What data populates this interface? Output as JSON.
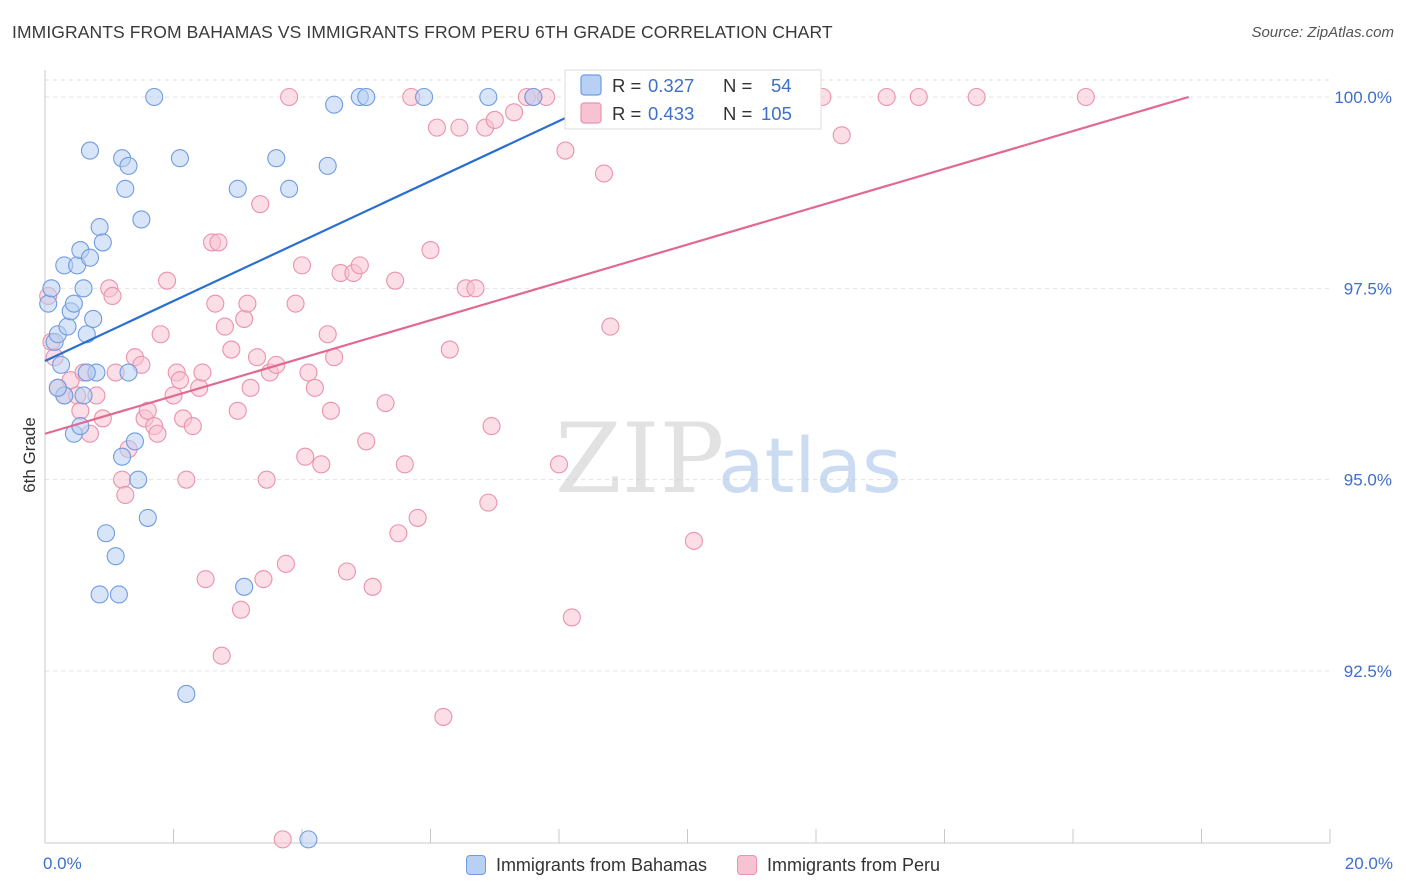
{
  "header": {
    "title": "IMMIGRANTS FROM BAHAMAS VS IMMIGRANTS FROM PERU 6TH GRADE CORRELATION CHART",
    "source": "Source: ZipAtlas.com"
  },
  "watermark": {
    "zip": "ZIP",
    "atlas": "atlas"
  },
  "legend_box": {
    "r_label": "R =",
    "n_label": "N =",
    "rows": [
      {
        "r": "0.327",
        "n": "54"
      },
      {
        "r": "0.433",
        "n": "105"
      }
    ]
  },
  "bottom_legend": [
    {
      "label": "Immigrants from Bahamas"
    },
    {
      "label": "Immigrants from Peru"
    }
  ],
  "colors": {
    "bahamas_fill": "#b8d0f3",
    "bahamas_stroke": "#6f9ce0",
    "bahamas_line": "#2a6fd0",
    "peru_fill": "#f7c2d1",
    "peru_stroke": "#eb92ad",
    "peru_line": "#e06a92",
    "tick_label": "#3e6fc9",
    "grid": "#e3e3e3"
  },
  "chart_data": {
    "type": "scatter",
    "title": "IMMIGRANTS FROM BAHAMAS VS IMMIGRANTS FROM PERU 6TH GRADE CORRELATION CHART",
    "xlabel": "",
    "ylabel": "6th Grade",
    "xlim": [
      0,
      20
    ],
    "ylim": [
      90.5,
      100.25
    ],
    "x_ticks_labels": [
      "0.0%",
      "20.0%"
    ],
    "y_ticks": [
      92.5,
      95.0,
      97.5,
      100.0
    ],
    "y_tick_labels": [
      "92.5%",
      "95.0%",
      "97.5%",
      "100.0%"
    ],
    "grid": "horizontal dashed",
    "series": [
      {
        "name": "Immigrants from Bahamas",
        "color": "#6f9ce0",
        "r": 0.327,
        "n": 54,
        "trend": {
          "x": [
            0.0,
            8.8
          ],
          "y": [
            96.55,
            100.0
          ]
        },
        "points": [
          [
            0.05,
            97.3
          ],
          [
            0.1,
            97.5
          ],
          [
            0.15,
            96.8
          ],
          [
            0.2,
            96.9
          ],
          [
            0.25,
            96.5
          ],
          [
            0.3,
            97.8
          ],
          [
            0.35,
            97.0
          ],
          [
            0.4,
            97.2
          ],
          [
            0.45,
            97.3
          ],
          [
            0.5,
            97.8
          ],
          [
            0.55,
            98.0
          ],
          [
            0.6,
            97.5
          ],
          [
            0.65,
            96.9
          ],
          [
            0.7,
            97.9
          ],
          [
            0.75,
            97.1
          ],
          [
            0.8,
            96.4
          ],
          [
            0.85,
            98.3
          ],
          [
            0.9,
            98.1
          ],
          [
            0.3,
            96.1
          ],
          [
            0.45,
            95.6
          ],
          [
            0.55,
            95.7
          ],
          [
            0.6,
            96.1
          ],
          [
            0.65,
            96.4
          ],
          [
            0.7,
            99.3
          ],
          [
            0.85,
            93.5
          ],
          [
            0.95,
            94.3
          ],
          [
            1.1,
            94.0
          ],
          [
            1.15,
            93.5
          ],
          [
            1.2,
            95.3
          ],
          [
            1.3,
            96.4
          ],
          [
            1.2,
            99.2
          ],
          [
            1.25,
            98.8
          ],
          [
            1.3,
            99.1
          ],
          [
            1.4,
            95.5
          ],
          [
            1.45,
            95.0
          ],
          [
            1.5,
            98.4
          ],
          [
            1.6,
            94.5
          ],
          [
            1.7,
            100.0
          ],
          [
            2.1,
            99.2
          ],
          [
            2.2,
            92.2
          ],
          [
            3.0,
            98.8
          ],
          [
            3.1,
            93.6
          ],
          [
            3.6,
            99.2
          ],
          [
            3.8,
            98.8
          ],
          [
            4.1,
            90.3
          ],
          [
            4.4,
            99.1
          ],
          [
            4.5,
            99.9
          ],
          [
            4.9,
            100.0
          ],
          [
            5.0,
            100.0
          ],
          [
            5.9,
            100.0
          ],
          [
            6.9,
            100.0
          ],
          [
            7.6,
            100.0
          ],
          [
            8.7,
            100.0
          ],
          [
            0.2,
            96.2
          ]
        ]
      },
      {
        "name": "Immigrants from Peru",
        "color": "#eb92ad",
        "r": 0.433,
        "n": 105,
        "trend": {
          "x": [
            0.0,
            17.8
          ],
          "y": [
            95.6,
            100.0
          ]
        },
        "points": [
          [
            0.05,
            97.4
          ],
          [
            0.1,
            96.8
          ],
          [
            0.15,
            96.6
          ],
          [
            0.2,
            96.2
          ],
          [
            0.3,
            96.1
          ],
          [
            0.4,
            96.3
          ],
          [
            0.5,
            96.1
          ],
          [
            0.55,
            95.9
          ],
          [
            0.6,
            96.4
          ],
          [
            0.7,
            95.6
          ],
          [
            0.8,
            96.1
          ],
          [
            0.9,
            95.8
          ],
          [
            1.0,
            97.5
          ],
          [
            1.05,
            97.4
          ],
          [
            1.1,
            96.4
          ],
          [
            1.2,
            95.0
          ],
          [
            1.25,
            94.8
          ],
          [
            1.3,
            95.4
          ],
          [
            1.4,
            96.6
          ],
          [
            1.5,
            96.5
          ],
          [
            1.55,
            95.8
          ],
          [
            1.6,
            95.9
          ],
          [
            1.7,
            95.7
          ],
          [
            1.75,
            95.6
          ],
          [
            1.8,
            96.9
          ],
          [
            1.9,
            97.6
          ],
          [
            2.0,
            96.1
          ],
          [
            2.05,
            96.4
          ],
          [
            2.1,
            96.3
          ],
          [
            2.15,
            95.8
          ],
          [
            2.2,
            95.0
          ],
          [
            2.3,
            95.7
          ],
          [
            2.4,
            96.2
          ],
          [
            2.45,
            96.4
          ],
          [
            2.5,
            93.7
          ],
          [
            2.6,
            98.1
          ],
          [
            2.65,
            97.3
          ],
          [
            2.7,
            98.1
          ],
          [
            2.75,
            92.7
          ],
          [
            2.8,
            97.0
          ],
          [
            2.9,
            96.7
          ],
          [
            3.0,
            95.9
          ],
          [
            3.05,
            93.3
          ],
          [
            3.1,
            97.1
          ],
          [
            3.15,
            97.3
          ],
          [
            3.2,
            96.2
          ],
          [
            3.3,
            96.6
          ],
          [
            3.35,
            98.6
          ],
          [
            3.4,
            93.7
          ],
          [
            3.45,
            95.0
          ],
          [
            3.5,
            96.4
          ],
          [
            3.6,
            96.5
          ],
          [
            3.7,
            90.3
          ],
          [
            3.75,
            93.9
          ],
          [
            3.9,
            97.3
          ],
          [
            4.0,
            97.8
          ],
          [
            4.05,
            95.3
          ],
          [
            4.1,
            96.4
          ],
          [
            4.2,
            96.2
          ],
          [
            4.3,
            95.2
          ],
          [
            4.4,
            96.9
          ],
          [
            4.45,
            95.9
          ],
          [
            4.5,
            96.6
          ],
          [
            4.6,
            97.7
          ],
          [
            4.7,
            93.8
          ],
          [
            4.8,
            97.7
          ],
          [
            4.9,
            97.8
          ],
          [
            5.0,
            95.5
          ],
          [
            5.1,
            93.6
          ],
          [
            5.3,
            96.0
          ],
          [
            5.45,
            97.6
          ],
          [
            5.5,
            94.3
          ],
          [
            5.6,
            95.2
          ],
          [
            5.7,
            100.0
          ],
          [
            5.8,
            94.5
          ],
          [
            6.0,
            98.0
          ],
          [
            6.1,
            99.6
          ],
          [
            6.2,
            91.9
          ],
          [
            6.3,
            96.7
          ],
          [
            6.45,
            99.6
          ],
          [
            6.55,
            97.5
          ],
          [
            6.7,
            97.5
          ],
          [
            6.85,
            99.6
          ],
          [
            6.9,
            94.7
          ],
          [
            6.95,
            95.7
          ],
          [
            7.0,
            99.7
          ],
          [
            7.3,
            99.8
          ],
          [
            7.5,
            100.0
          ],
          [
            7.6,
            100.0
          ],
          [
            8.1,
            99.3
          ],
          [
            8.0,
            95.2
          ],
          [
            8.2,
            93.2
          ],
          [
            8.7,
            99.0
          ],
          [
            8.8,
            97.0
          ],
          [
            9.6,
            100.0
          ],
          [
            10.1,
            94.2
          ],
          [
            12.1,
            100.0
          ],
          [
            12.4,
            99.5
          ],
          [
            13.1,
            100.0
          ],
          [
            13.6,
            100.0
          ],
          [
            14.5,
            100.0
          ],
          [
            16.2,
            100.0
          ],
          [
            3.8,
            100.0
          ],
          [
            7.8,
            100.0
          ],
          [
            9.7,
            100.0
          ]
        ]
      }
    ]
  }
}
